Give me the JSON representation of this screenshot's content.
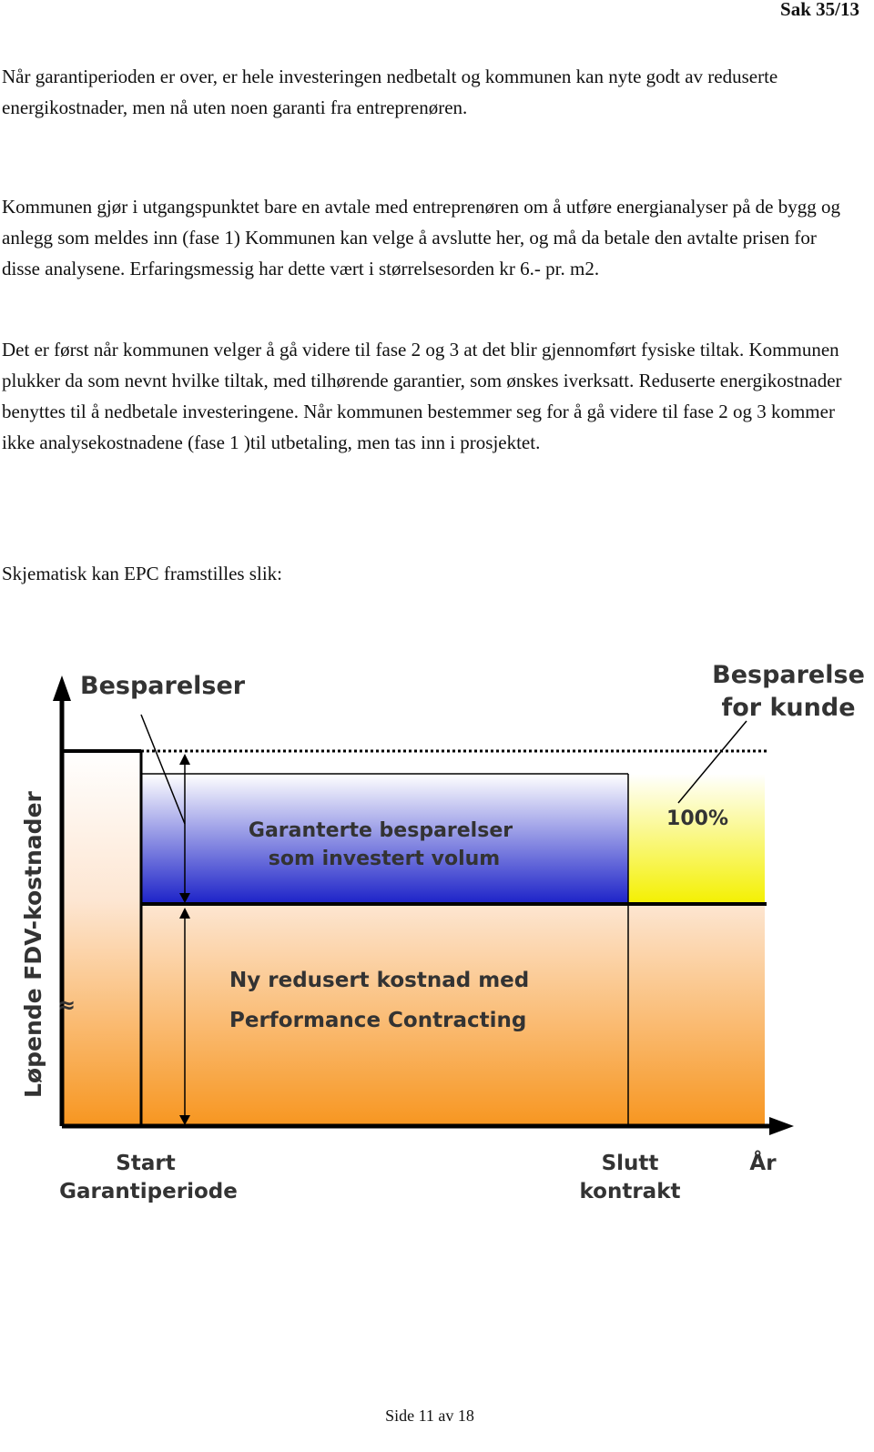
{
  "header": {
    "page_ref": "Sak 35/13"
  },
  "paragraphs": [
    "Når garantiperioden er over, er hele investeringen nedbetalt og kommunen kan nyte godt av reduserte energikostnader, men nå uten noen garanti fra entreprenøren.",
    "Kommunen gjør i utgangspunktet bare en avtale med entreprenøren om å utføre energianalyser på de bygg og anlegg som meldes inn (fase 1) Kommunen kan velge å avslutte her, og må da betale den avtalte prisen for disse analysene. Erfaringsmessig har dette vært i størrelsesorden kr 6.- pr. m2.",
    "Det er først når kommunen velger å gå videre til fase 2 og 3 at det blir gjennomført fysiske tiltak. Kommunen plukker da som nevnt hvilke tiltak, med tilhørende garantier, som ønskes iverksatt. Reduserte energikostnader benyttes til å nedbetale investeringene. Når kommunen bestemmer seg for å gå videre til fase 2 og 3 kommer ikke analysekostnadene (fase 1 )til utbetaling, men tas inn i prosjektet.",
    "Skjematisk kan EPC framstilles slik:"
  ],
  "diagram": {
    "y_axis_label": "Løpende FDV-kostnader",
    "axis_break": "≈",
    "savings_label": "Besparelser",
    "customer_savings": [
      "Besparelse",
      "for kunde"
    ],
    "percent": "100%",
    "guaranteed": [
      "Garanterte besparelser",
      "som investert volum"
    ],
    "reduced": [
      "Ny redusert kostnad med",
      "Performance Contracting"
    ],
    "start": [
      "Start",
      "Garantiperiode"
    ],
    "end": [
      "Slutt",
      "kontrakt"
    ],
    "x_axis_label": "År"
  },
  "footer": {
    "page": "Side 11 av 18"
  }
}
